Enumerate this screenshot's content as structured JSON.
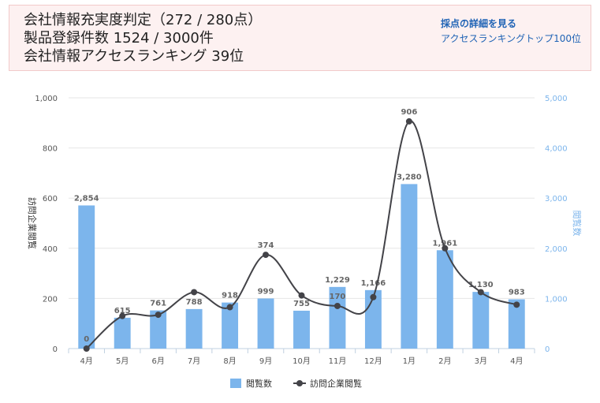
{
  "header": {
    "line1": "会社情報充実度判定（272 / 280点）",
    "line2": "製品登録件数 1524 / 3000件",
    "line3": "会社情報アクセスランキング 39位",
    "link_score_detail": "採点の詳細を見る",
    "link_ranking_top": "アクセスランキングトップ100位"
  },
  "colors": {
    "bar": "#7cb5ec",
    "line": "#434348",
    "right_axis": "#7cb5ec"
  },
  "chart_data": {
    "type": "bar+line",
    "categories": [
      "4月",
      "5月",
      "6月",
      "7月",
      "8月",
      "9月",
      "10月",
      "11月",
      "12月",
      "1月",
      "2月",
      "3月",
      "4月"
    ],
    "series": [
      {
        "name": "閲覧数",
        "type": "bar",
        "axis": "right",
        "values": [
          2854,
          615,
          761,
          788,
          918,
          999,
          755,
          1229,
          1166,
          3280,
          1961,
          1130,
          983
        ],
        "labels": [
          "2,854",
          "615",
          "761",
          "788",
          "918",
          "999",
          "755",
          "1,229",
          "1,166",
          "3,280",
          "1,961",
          "1,130",
          "983"
        ]
      },
      {
        "name": "訪問企業閲覧",
        "type": "line",
        "axis": "left",
        "values": [
          0,
          130,
          135,
          225,
          165,
          374,
          212,
          170,
          205,
          906,
          400,
          225,
          175
        ],
        "labels": [
          "0",
          "",
          "",
          "",
          "",
          "374",
          "",
          "170",
          "",
          "906",
          "",
          "",
          ""
        ]
      }
    ],
    "left_axis": {
      "label": "訪問企業閲覧",
      "ylim": [
        0,
        1000
      ],
      "ticks": [
        "0",
        "200",
        "400",
        "600",
        "800",
        "1,000"
      ]
    },
    "right_axis": {
      "label": "閲覧数",
      "ylim": [
        0,
        5000
      ],
      "ticks": [
        "0",
        "1,000",
        "2,000",
        "3,000",
        "4,000",
        "5,000"
      ]
    },
    "grid": true,
    "legend": "bottom-center"
  }
}
